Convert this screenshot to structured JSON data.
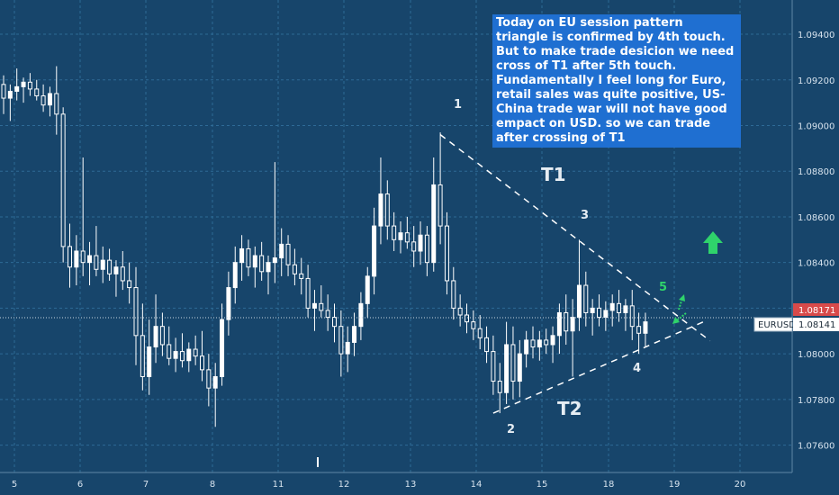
{
  "chart_data": {
    "type": "candlestick",
    "symbol": "EURUSD",
    "y_ticks": [
      1.094,
      1.092,
      1.09,
      1.088,
      1.086,
      1.084,
      1.082,
      1.08,
      1.078,
      1.076
    ],
    "y_tick_labels": [
      "1.09400",
      "1.09200",
      "1.09000",
      "1.08800",
      "1.08600",
      "1.08400",
      "1.08200",
      "1.08000",
      "1.07800",
      "1.07600"
    ],
    "x_tick_labels": [
      "5",
      "6",
      "7",
      "8",
      "11",
      "12",
      "13",
      "14",
      "15",
      "18",
      "19",
      "20"
    ],
    "ylim": [
      1.0748,
      1.0955
    ],
    "price_labels": {
      "upper": "1.08171",
      "lower": "1.08141"
    },
    "grid": true,
    "candles": [
      {
        "x": 0,
        "o": 1.0918,
        "h": 1.0922,
        "l": 1.0905,
        "c": 1.0912
      },
      {
        "x": 1,
        "o": 1.0912,
        "h": 1.0918,
        "l": 1.0902,
        "c": 1.0915
      },
      {
        "x": 2,
        "o": 1.0915,
        "h": 1.0925,
        "l": 1.0911,
        "c": 1.0917
      },
      {
        "x": 3,
        "o": 1.0917,
        "h": 1.0921,
        "l": 1.091,
        "c": 1.0919
      },
      {
        "x": 4,
        "o": 1.0919,
        "h": 1.0923,
        "l": 1.0913,
        "c": 1.0916
      },
      {
        "x": 5,
        "o": 1.0916,
        "h": 1.092,
        "l": 1.0911,
        "c": 1.0913
      },
      {
        "x": 6,
        "o": 1.0913,
        "h": 1.0918,
        "l": 1.0906,
        "c": 1.0909
      },
      {
        "x": 7,
        "o": 1.0909,
        "h": 1.0917,
        "l": 1.0904,
        "c": 1.0914
      },
      {
        "x": 8,
        "o": 1.0914,
        "h": 1.0926,
        "l": 1.0896,
        "c": 1.0905
      },
      {
        "x": 9,
        "o": 1.0905,
        "h": 1.0908,
        "l": 1.084,
        "c": 1.0847
      },
      {
        "x": 10,
        "o": 1.0847,
        "h": 1.0857,
        "l": 1.0829,
        "c": 1.0838
      },
      {
        "x": 11,
        "o": 1.0838,
        "h": 1.0852,
        "l": 1.083,
        "c": 1.0845
      },
      {
        "x": 12,
        "o": 1.0845,
        "h": 1.0886,
        "l": 1.0834,
        "c": 1.084
      },
      {
        "x": 13,
        "o": 1.084,
        "h": 1.0849,
        "l": 1.083,
        "c": 1.0843
      },
      {
        "x": 14,
        "o": 1.0843,
        "h": 1.0856,
        "l": 1.0834,
        "c": 1.0837
      },
      {
        "x": 15,
        "o": 1.0837,
        "h": 1.0847,
        "l": 1.0831,
        "c": 1.0841
      },
      {
        "x": 16,
        "o": 1.0841,
        "h": 1.0846,
        "l": 1.0832,
        "c": 1.0835
      },
      {
        "x": 17,
        "o": 1.0835,
        "h": 1.0841,
        "l": 1.0825,
        "c": 1.0838
      },
      {
        "x": 18,
        "o": 1.0838,
        "h": 1.0845,
        "l": 1.0828,
        "c": 1.0832
      },
      {
        "x": 19,
        "o": 1.0832,
        "h": 1.084,
        "l": 1.0822,
        "c": 1.0829
      },
      {
        "x": 20,
        "o": 1.0829,
        "h": 1.0838,
        "l": 1.0795,
        "c": 1.0808
      },
      {
        "x": 21,
        "o": 1.0808,
        "h": 1.0822,
        "l": 1.0784,
        "c": 1.079
      },
      {
        "x": 22,
        "o": 1.079,
        "h": 1.0815,
        "l": 1.0782,
        "c": 1.0803
      },
      {
        "x": 23,
        "o": 1.0803,
        "h": 1.0826,
        "l": 1.0796,
        "c": 1.0812
      },
      {
        "x": 24,
        "o": 1.0812,
        "h": 1.0818,
        "l": 1.0799,
        "c": 1.0804
      },
      {
        "x": 25,
        "o": 1.0804,
        "h": 1.0812,
        "l": 1.0795,
        "c": 1.0798
      },
      {
        "x": 26,
        "o": 1.0798,
        "h": 1.0807,
        "l": 1.0792,
        "c": 1.0801
      },
      {
        "x": 27,
        "o": 1.0801,
        "h": 1.0809,
        "l": 1.0794,
        "c": 1.0797
      },
      {
        "x": 28,
        "o": 1.0797,
        "h": 1.0805,
        "l": 1.0792,
        "c": 1.0802
      },
      {
        "x": 29,
        "o": 1.0802,
        "h": 1.0808,
        "l": 1.0795,
        "c": 1.0799
      },
      {
        "x": 30,
        "o": 1.0799,
        "h": 1.081,
        "l": 1.0788,
        "c": 1.0793
      },
      {
        "x": 31,
        "o": 1.0793,
        "h": 1.08,
        "l": 1.0777,
        "c": 1.0785
      },
      {
        "x": 32,
        "o": 1.0785,
        "h": 1.0796,
        "l": 1.0768,
        "c": 1.079
      },
      {
        "x": 33,
        "o": 1.079,
        "h": 1.0822,
        "l": 1.0786,
        "c": 1.0815
      },
      {
        "x": 34,
        "o": 1.0815,
        "h": 1.0836,
        "l": 1.0808,
        "c": 1.0829
      },
      {
        "x": 35,
        "o": 1.0829,
        "h": 1.0847,
        "l": 1.0822,
        "c": 1.084
      },
      {
        "x": 36,
        "o": 1.084,
        "h": 1.0852,
        "l": 1.0832,
        "c": 1.0846
      },
      {
        "x": 37,
        "o": 1.0846,
        "h": 1.085,
        "l": 1.0834,
        "c": 1.0838
      },
      {
        "x": 38,
        "o": 1.0838,
        "h": 1.0847,
        "l": 1.0829,
        "c": 1.0843
      },
      {
        "x": 39,
        "o": 1.0843,
        "h": 1.0849,
        "l": 1.0832,
        "c": 1.0836
      },
      {
        "x": 40,
        "o": 1.0836,
        "h": 1.0843,
        "l": 1.0826,
        "c": 1.084
      },
      {
        "x": 41,
        "o": 1.084,
        "h": 1.0884,
        "l": 1.0831,
        "c": 1.0842
      },
      {
        "x": 42,
        "o": 1.0842,
        "h": 1.0855,
        "l": 1.0834,
        "c": 1.0848
      },
      {
        "x": 43,
        "o": 1.0848,
        "h": 1.0852,
        "l": 1.0834,
        "c": 1.0839
      },
      {
        "x": 44,
        "o": 1.0839,
        "h": 1.0846,
        "l": 1.083,
        "c": 1.0835
      },
      {
        "x": 45,
        "o": 1.0835,
        "h": 1.0842,
        "l": 1.0826,
        "c": 1.0833
      },
      {
        "x": 46,
        "o": 1.0833,
        "h": 1.0839,
        "l": 1.0816,
        "c": 1.082
      },
      {
        "x": 47,
        "o": 1.082,
        "h": 1.0828,
        "l": 1.081,
        "c": 1.0822
      },
      {
        "x": 48,
        "o": 1.0822,
        "h": 1.083,
        "l": 1.0816,
        "c": 1.0819
      },
      {
        "x": 49,
        "o": 1.0819,
        "h": 1.0826,
        "l": 1.081,
        "c": 1.0816
      },
      {
        "x": 50,
        "o": 1.0816,
        "h": 1.0822,
        "l": 1.0805,
        "c": 1.0812
      },
      {
        "x": 51,
        "o": 1.0812,
        "h": 1.0819,
        "l": 1.079,
        "c": 1.08
      },
      {
        "x": 52,
        "o": 1.08,
        "h": 1.0812,
        "l": 1.0792,
        "c": 1.0805
      },
      {
        "x": 53,
        "o": 1.0805,
        "h": 1.0818,
        "l": 1.0799,
        "c": 1.0812
      },
      {
        "x": 54,
        "o": 1.0812,
        "h": 1.0827,
        "l": 1.0806,
        "c": 1.0822
      },
      {
        "x": 55,
        "o": 1.0822,
        "h": 1.0838,
        "l": 1.0816,
        "c": 1.0834
      },
      {
        "x": 56,
        "o": 1.0834,
        "h": 1.0864,
        "l": 1.0826,
        "c": 1.0856
      },
      {
        "x": 57,
        "o": 1.0856,
        "h": 1.0886,
        "l": 1.0848,
        "c": 1.087
      },
      {
        "x": 58,
        "o": 1.087,
        "h": 1.0876,
        "l": 1.085,
        "c": 1.0856
      },
      {
        "x": 59,
        "o": 1.0856,
        "h": 1.0862,
        "l": 1.0845,
        "c": 1.085
      },
      {
        "x": 60,
        "o": 1.085,
        "h": 1.0858,
        "l": 1.0844,
        "c": 1.0853
      },
      {
        "x": 61,
        "o": 1.0853,
        "h": 1.086,
        "l": 1.0846,
        "c": 1.0849
      },
      {
        "x": 62,
        "o": 1.0849,
        "h": 1.0856,
        "l": 1.0838,
        "c": 1.0845
      },
      {
        "x": 63,
        "o": 1.0845,
        "h": 1.0858,
        "l": 1.0839,
        "c": 1.0852
      },
      {
        "x": 64,
        "o": 1.0852,
        "h": 1.0856,
        "l": 1.0834,
        "c": 1.084
      },
      {
        "x": 65,
        "o": 1.084,
        "h": 1.0886,
        "l": 1.0836,
        "c": 1.0874
      },
      {
        "x": 66,
        "o": 1.0874,
        "h": 1.0897,
        "l": 1.0848,
        "c": 1.0856
      },
      {
        "x": 67,
        "o": 1.0856,
        "h": 1.0862,
        "l": 1.0826,
        "c": 1.0832
      },
      {
        "x": 68,
        "o": 1.0832,
        "h": 1.0838,
        "l": 1.0815,
        "c": 1.082
      },
      {
        "x": 69,
        "o": 1.082,
        "h": 1.0826,
        "l": 1.0812,
        "c": 1.0817
      },
      {
        "x": 70,
        "o": 1.0817,
        "h": 1.0822,
        "l": 1.0809,
        "c": 1.0814
      },
      {
        "x": 71,
        "o": 1.0814,
        "h": 1.0819,
        "l": 1.0806,
        "c": 1.0811
      },
      {
        "x": 72,
        "o": 1.0811,
        "h": 1.0817,
        "l": 1.0802,
        "c": 1.0807
      },
      {
        "x": 73,
        "o": 1.0807,
        "h": 1.0812,
        "l": 1.0796,
        "c": 1.0801
      },
      {
        "x": 74,
        "o": 1.0801,
        "h": 1.0808,
        "l": 1.0782,
        "c": 1.0788
      },
      {
        "x": 75,
        "o": 1.0788,
        "h": 1.0796,
        "l": 1.0774,
        "c": 1.0783
      },
      {
        "x": 76,
        "o": 1.0783,
        "h": 1.0814,
        "l": 1.0778,
        "c": 1.0804
      },
      {
        "x": 77,
        "o": 1.0804,
        "h": 1.0812,
        "l": 1.078,
        "c": 1.0788
      },
      {
        "x": 78,
        "o": 1.0788,
        "h": 1.0806,
        "l": 1.0781,
        "c": 1.08
      },
      {
        "x": 79,
        "o": 1.08,
        "h": 1.081,
        "l": 1.0794,
        "c": 1.0806
      },
      {
        "x": 80,
        "o": 1.0806,
        "h": 1.0812,
        "l": 1.0798,
        "c": 1.0803
      },
      {
        "x": 81,
        "o": 1.0803,
        "h": 1.081,
        "l": 1.0797,
        "c": 1.0806
      },
      {
        "x": 82,
        "o": 1.0806,
        "h": 1.0811,
        "l": 1.08,
        "c": 1.0804
      },
      {
        "x": 83,
        "o": 1.0804,
        "h": 1.0812,
        "l": 1.0796,
        "c": 1.0808
      },
      {
        "x": 84,
        "o": 1.0808,
        "h": 1.0822,
        "l": 1.08,
        "c": 1.0818
      },
      {
        "x": 85,
        "o": 1.0818,
        "h": 1.0826,
        "l": 1.0804,
        "c": 1.081
      },
      {
        "x": 86,
        "o": 1.081,
        "h": 1.0824,
        "l": 1.079,
        "c": 1.0816
      },
      {
        "x": 87,
        "o": 1.0816,
        "h": 1.085,
        "l": 1.081,
        "c": 1.083
      },
      {
        "x": 88,
        "o": 1.083,
        "h": 1.0836,
        "l": 1.0812,
        "c": 1.0818
      },
      {
        "x": 89,
        "o": 1.0818,
        "h": 1.0824,
        "l": 1.0808,
        "c": 1.082
      },
      {
        "x": 90,
        "o": 1.082,
        "h": 1.0826,
        "l": 1.0812,
        "c": 1.0816
      },
      {
        "x": 91,
        "o": 1.0816,
        "h": 1.0823,
        "l": 1.081,
        "c": 1.0819
      },
      {
        "x": 92,
        "o": 1.0819,
        "h": 1.0826,
        "l": 1.0812,
        "c": 1.0822
      },
      {
        "x": 93,
        "o": 1.0822,
        "h": 1.0828,
        "l": 1.0814,
        "c": 1.0818
      },
      {
        "x": 94,
        "o": 1.0818,
        "h": 1.0824,
        "l": 1.081,
        "c": 1.0821
      },
      {
        "x": 95,
        "o": 1.0821,
        "h": 1.0828,
        "l": 1.0806,
        "c": 1.0812
      },
      {
        "x": 96,
        "o": 1.0812,
        "h": 1.0818,
        "l": 1.08,
        "c": 1.0809
      },
      {
        "x": 97,
        "o": 1.0809,
        "h": 1.0818,
        "l": 1.0803,
        "c": 1.0814
      }
    ],
    "trendlines": [
      {
        "name": "T1",
        "from": {
          "x": 66,
          "y": 1.0896
        },
        "to": {
          "x": 105,
          "y": 1.0812
        }
      },
      {
        "name": "T2",
        "from": {
          "x": 74,
          "y": 1.0774
        },
        "to": {
          "x": 104,
          "y": 1.0814
        }
      }
    ],
    "annotation": "Today on EU session pattern triangle is confirmed by 4th touch. But to make trade desicion we need cross of T1 after 5th touch. Fundamentally I feel long for Euro, retail sales was quite positive, US-China trade war will not have good empact on USD. so we can trade after crossing of T1",
    "touch_labels": [
      "1",
      "2",
      "3",
      "4",
      "5"
    ],
    "line_labels": [
      "T1",
      "T2"
    ]
  },
  "colors": {
    "background": "#17456b",
    "grid": "#2e6a96",
    "candle": "#ffffff",
    "arrow": "#2fd36b",
    "annotation_bg": "#1f6fd1",
    "price_label_upper": "#d84a4a",
    "price_label_lower": "#ffffff"
  }
}
